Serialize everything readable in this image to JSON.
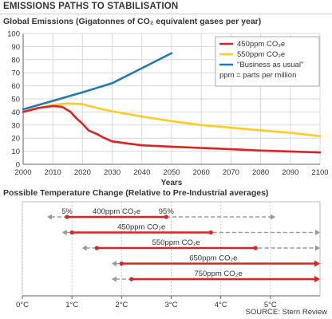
{
  "page_title": "EMISSIONS PATHS TO STABILISATION",
  "source": "SOURCE: Stern Review",
  "colors": {
    "c450": "#dd2222",
    "c550": "#ffcc22",
    "cbau": "#2477b5",
    "grid": "#d8d8d8",
    "axis": "#666666",
    "dash": "#999999"
  },
  "chart_data": [
    {
      "type": "line",
      "title": "Global Emissions (Gigatonnes of CO₂ equivalent gases per year)",
      "xlabel": "Years",
      "ylabel": "",
      "xlim": [
        2000,
        2100
      ],
      "ylim": [
        0,
        100
      ],
      "x_ticks": [
        "2000",
        "2010",
        "2020",
        "2030",
        "2040",
        "2050",
        "2060",
        "2070",
        "2080",
        "2090",
        "2100"
      ],
      "y_ticks": [
        "0",
        "10",
        "20",
        "30",
        "40",
        "50",
        "60",
        "70",
        "80",
        "90",
        "100"
      ],
      "grid": true,
      "legend_position": "top-right",
      "legend_note": "ppm = parts per million",
      "series": [
        {
          "name": "450ppm CO₂e",
          "color": "#dd2222",
          "x": [
            2000,
            2005,
            2010,
            2013,
            2016,
            2018,
            2020,
            2022,
            2025,
            2027,
            2030,
            2035,
            2040,
            2050,
            2060,
            2070,
            2080,
            2090,
            2100
          ],
          "y": [
            40,
            43,
            44.5,
            44,
            40,
            35,
            31,
            26,
            23,
            20.5,
            17.5,
            16,
            14.5,
            13.5,
            12.5,
            11.5,
            10.5,
            9.8,
            9
          ]
        },
        {
          "name": "550ppm CO₂e",
          "color": "#ffcc22",
          "x": [
            2000,
            2005,
            2010,
            2015,
            2020,
            2025,
            2030,
            2040,
            2050,
            2060,
            2070,
            2080,
            2090,
            2100
          ],
          "y": [
            40,
            43,
            45.5,
            46.5,
            46,
            43,
            40.5,
            36.5,
            33,
            30,
            28,
            26,
            24,
            21.5
          ]
        },
        {
          "name": "\"Business as usual\"",
          "color": "#2477b5",
          "x": [
            2000,
            2010,
            2020,
            2030,
            2040,
            2050
          ],
          "y": [
            42,
            48.5,
            55,
            62,
            73.5,
            85
          ]
        }
      ]
    },
    {
      "type": "range",
      "title": "Possible Temperature Change (Relative to Pre-Industrial averages)",
      "xlim": [
        0,
        6
      ],
      "x_ticks": [
        "0°C",
        "1°C",
        "2°C",
        "3°C",
        "4°C",
        "5°C"
      ],
      "percentile_labels": [
        "5%",
        "95%"
      ],
      "rows": [
        {
          "label": "400ppm CO₂e",
          "low": 0.8,
          "high": 2.4,
          "p5": 0.9,
          "p95": 2.9,
          "dash_low": 0.5,
          "dash_high": 5.1
        },
        {
          "label": "450ppm CO₂e",
          "low": 0.8,
          "high": 5.7,
          "p5": 1.0,
          "p95": 3.8,
          "dash_low": 0.8,
          "dash_high": 6.0
        },
        {
          "label": "550ppm CO₂e",
          "low": 1.2,
          "high": 6.0,
          "p5": 1.5,
          "p95": 4.7,
          "dash_low": 1.2,
          "dash_high": 6.0
        },
        {
          "label": "650ppm CO₂e",
          "low": 1.8,
          "high": 6.0,
          "p5": 2.0,
          "p95": 6.0,
          "dash_low": 1.8,
          "dash_high": 6.0
        },
        {
          "label": "750ppm CO₂e",
          "low": 2.0,
          "high": 6.0,
          "p5": 2.2,
          "p95": 6.0,
          "dash_low": 1.8,
          "dash_high": 6.0
        }
      ]
    }
  ]
}
